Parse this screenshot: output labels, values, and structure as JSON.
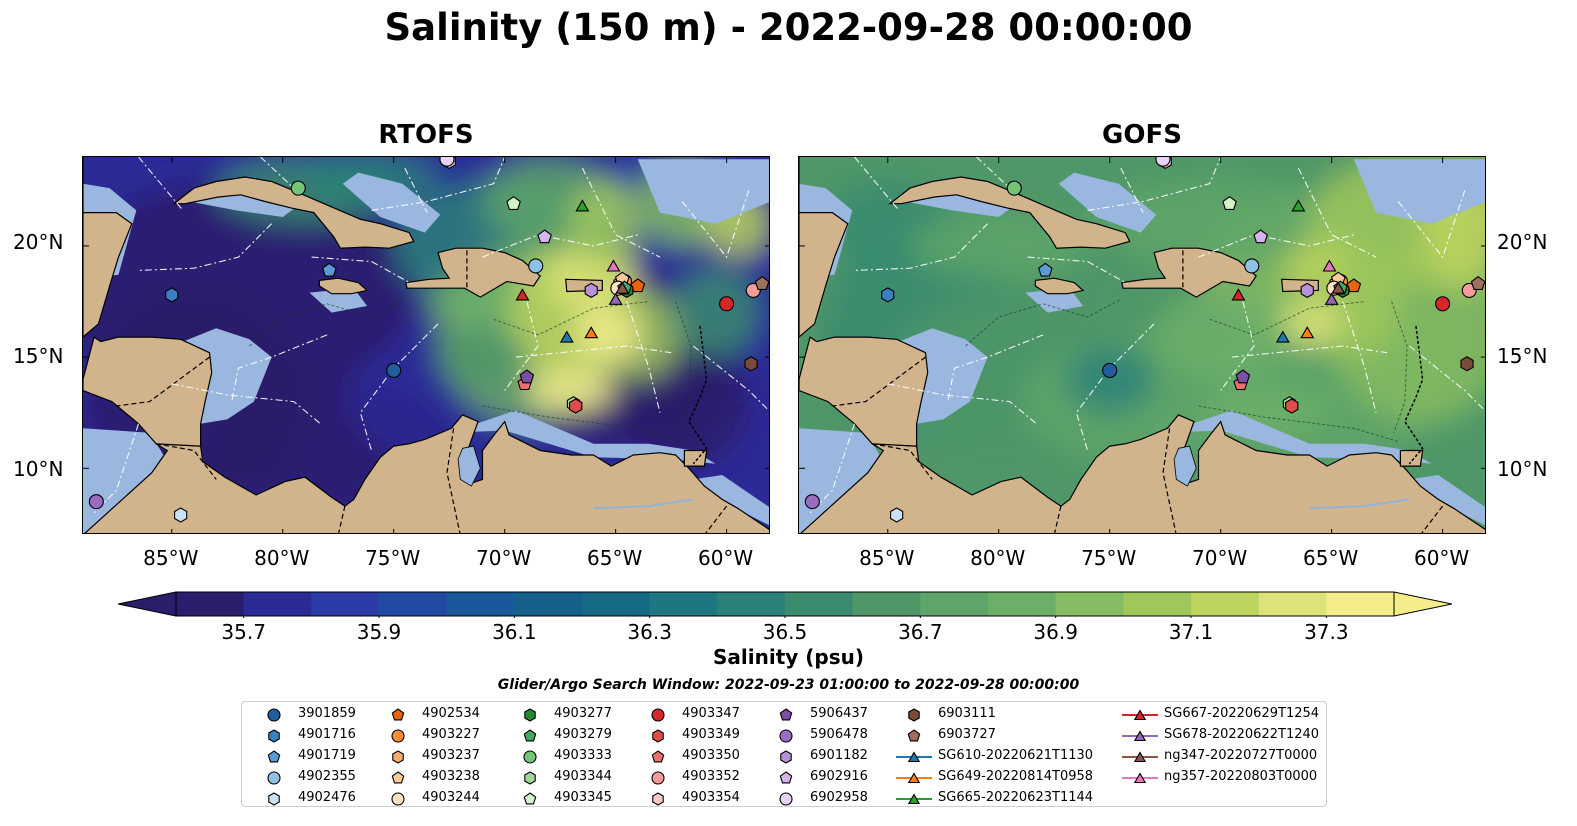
{
  "figure": {
    "title": "Salinity (150 m) - 2022-09-28 00:00:00"
  },
  "panels": [
    {
      "title": "RTOFS",
      "field_style": "rtofs"
    },
    {
      "title": "GOFS",
      "field_style": "gofs"
    }
  ],
  "map": {
    "extent": {
      "lon_min": -89,
      "lon_max": -58,
      "lat_min": 7,
      "lat_max": 24
    },
    "lat_ticks": [
      {
        "value": 20,
        "label": "20°N"
      },
      {
        "value": 15,
        "label": "15°N"
      },
      {
        "value": 10,
        "label": "10°N"
      }
    ],
    "lon_ticks": [
      {
        "value": -85,
        "label": "85°W"
      },
      {
        "value": -80,
        "label": "80°W"
      },
      {
        "value": -75,
        "label": "75°W"
      },
      {
        "value": -70,
        "label": "70°W"
      },
      {
        "value": -65,
        "label": "65°W"
      },
      {
        "value": -60,
        "label": "60°W"
      }
    ],
    "colors": {
      "land": "#d2b48c",
      "shelf": "#9ab7e0",
      "coast": "#000000",
      "eez": "#ffffff"
    }
  },
  "colorbar": {
    "label": "Salinity (psu)",
    "min": 35.6,
    "max": 37.4,
    "ticks": [
      "35.7",
      "35.9",
      "36.1",
      "36.3",
      "36.5",
      "36.7",
      "36.9",
      "37.1",
      "37.3"
    ],
    "colors": [
      "#2a1d6b",
      "#2c2a96",
      "#2b3ba8",
      "#214aa3",
      "#19589b",
      "#155f8d",
      "#166a86",
      "#1d7680",
      "#2a8179",
      "#3a8c70",
      "#4f9768",
      "#5fa56a",
      "#6daf68",
      "#85bb62",
      "#9fc75c",
      "#bcd45d",
      "#dde37a",
      "#f5ec8c"
    ],
    "extend": "both"
  },
  "search_window": "Glider/Argo Search Window: 2022-09-23 01:00:00 to 2022-09-28 00:00:00",
  "legend": {
    "columns": [
      [
        {
          "label": "3901859",
          "marker": "circle",
          "color": "#1f5fa0"
        },
        {
          "label": "4901716",
          "marker": "hexagon",
          "color": "#3a7fc0"
        },
        {
          "label": "4901719",
          "marker": "pentagon",
          "color": "#5b9bd5"
        },
        {
          "label": "4902355",
          "marker": "circle",
          "color": "#8ec1e6"
        },
        {
          "label": "4902476",
          "marker": "hexagon",
          "color": "#c8e3f5"
        }
      ],
      [
        {
          "label": "4902534",
          "marker": "pentagon",
          "color": "#e8650d"
        },
        {
          "label": "4903227",
          "marker": "circle",
          "color": "#fd8d3c"
        },
        {
          "label": "4903237",
          "marker": "hexagon",
          "color": "#fdae6b"
        },
        {
          "label": "4903238",
          "marker": "pentagon",
          "color": "#fdc89a"
        },
        {
          "label": "4903244",
          "marker": "circle",
          "color": "#fde0c4"
        }
      ],
      [
        {
          "label": "4903277",
          "marker": "hexagon",
          "color": "#238b2e"
        },
        {
          "label": "4903279",
          "marker": "pentagon",
          "color": "#41ab5d"
        },
        {
          "label": "4903333",
          "marker": "circle",
          "color": "#74c476"
        },
        {
          "label": "4903344",
          "marker": "hexagon",
          "color": "#a1d99b"
        },
        {
          "label": "4903345",
          "marker": "pentagon",
          "color": "#d4f2c8"
        }
      ],
      [
        {
          "label": "4903347",
          "marker": "circle",
          "color": "#d62728"
        },
        {
          "label": "4903349",
          "marker": "hexagon",
          "color": "#e04b4b"
        },
        {
          "label": "4903350",
          "marker": "pentagon",
          "color": "#ec7070"
        },
        {
          "label": "4903352",
          "marker": "circle",
          "color": "#f59b9b"
        },
        {
          "label": "4903354",
          "marker": "hexagon",
          "color": "#fbc7c7"
        }
      ],
      [
        {
          "label": "5906437",
          "marker": "pentagon",
          "color": "#7b4fa6"
        },
        {
          "label": "5906478",
          "marker": "circle",
          "color": "#9a6dc2"
        },
        {
          "label": "6901182",
          "marker": "hexagon",
          "color": "#b792d8"
        },
        {
          "label": "6902916",
          "marker": "pentagon",
          "color": "#d3b7ec"
        },
        {
          "label": "6902958",
          "marker": "circle",
          "color": "#e6d3f7"
        }
      ],
      [
        {
          "label": "6903111",
          "marker": "hexagon",
          "color": "#7a4a3a"
        },
        {
          "label": "6903727",
          "marker": "pentagon",
          "color": "#a0705f"
        },
        {
          "label": "SG610-20220621T1130",
          "marker": "triangle",
          "color": "#1f77b4",
          "line": true
        },
        {
          "label": "SG649-20220814T0958",
          "marker": "triangle",
          "color": "#ff7f0e",
          "line": true
        },
        {
          "label": "SG665-20220623T1144",
          "marker": "triangle",
          "color": "#2ca02c",
          "line": true
        }
      ],
      [
        {
          "label": "SG667-20220629T1254",
          "marker": "triangle",
          "color": "#d62728",
          "line": true
        },
        {
          "label": "SG678-20220622T1240",
          "marker": "triangle",
          "color": "#9467bd",
          "line": true
        },
        {
          "label": "ng347-20220727T0000",
          "marker": "triangle",
          "color": "#8c564b",
          "line": true
        },
        {
          "label": "ng357-20220803T0000",
          "marker": "triangle",
          "color": "#e377c2",
          "line": true
        }
      ]
    ]
  },
  "platforms": [
    {
      "label": "3901859",
      "lon": -75.0,
      "lat": 14.4
    },
    {
      "label": "4901716",
      "lon": -85.0,
      "lat": 17.8
    },
    {
      "label": "4901719",
      "lon": -77.9,
      "lat": 18.9
    },
    {
      "label": "4902355",
      "lon": -68.6,
      "lat": 19.1
    },
    {
      "label": "4902476",
      "lon": -84.6,
      "lat": 7.9
    },
    {
      "label": "4902534",
      "lon": -64.0,
      "lat": 18.2
    },
    {
      "label": "4903227",
      "lon": -64.6,
      "lat": 18.4
    },
    {
      "label": "4903237",
      "lon": -64.8,
      "lat": 18.3
    },
    {
      "label": "4903238",
      "lon": -64.7,
      "lat": 18.5
    },
    {
      "label": "4903244",
      "lon": -64.9,
      "lat": 18.1
    },
    {
      "label": "4903277",
      "lon": -64.5,
      "lat": 18.0
    },
    {
      "label": "4903279",
      "lon": -64.6,
      "lat": 18.1
    },
    {
      "label": "4903333",
      "lon": -79.3,
      "lat": 22.6
    },
    {
      "label": "4903344",
      "lon": -66.9,
      "lat": 12.9
    },
    {
      "label": "4903345",
      "lon": -69.6,
      "lat": 21.9
    },
    {
      "label": "4903347",
      "lon": -60.0,
      "lat": 17.4
    },
    {
      "label": "4903349",
      "lon": -66.8,
      "lat": 12.8
    },
    {
      "label": "4903350",
      "lon": -69.1,
      "lat": 13.8
    },
    {
      "label": "4903352",
      "lon": -58.8,
      "lat": 18.0
    },
    {
      "label": "4903354",
      "lon": -72.5,
      "lat": 23.8
    },
    {
      "label": "5906437",
      "lon": -69.0,
      "lat": 14.1
    },
    {
      "label": "5906478",
      "lon": -88.4,
      "lat": 8.5
    },
    {
      "label": "6901182",
      "lon": -66.1,
      "lat": 18.0
    },
    {
      "label": "6902916",
      "lon": -68.2,
      "lat": 20.4
    },
    {
      "label": "6902958",
      "lon": -72.6,
      "lat": 23.9
    },
    {
      "label": "6903111",
      "lon": -58.9,
      "lat": 14.7
    },
    {
      "label": "6903727",
      "lon": -58.4,
      "lat": 18.3
    },
    {
      "label": "SG610-20220621T1130",
      "lon": -67.2,
      "lat": 15.9
    },
    {
      "label": "SG649-20220814T0958",
      "lon": -66.1,
      "lat": 16.1
    },
    {
      "label": "SG665-20220623T1144",
      "lon": -66.5,
      "lat": 21.8
    },
    {
      "label": "SG667-20220629T1254",
      "lon": -69.2,
      "lat": 17.8
    },
    {
      "label": "SG678-20220622T1240",
      "lon": -65.0,
      "lat": 17.6
    },
    {
      "label": "ng347-20220727T0000",
      "lon": -64.7,
      "lat": 18.1
    },
    {
      "label": "ng357-20220803T0000",
      "lon": -65.1,
      "lat": 19.1
    }
  ]
}
